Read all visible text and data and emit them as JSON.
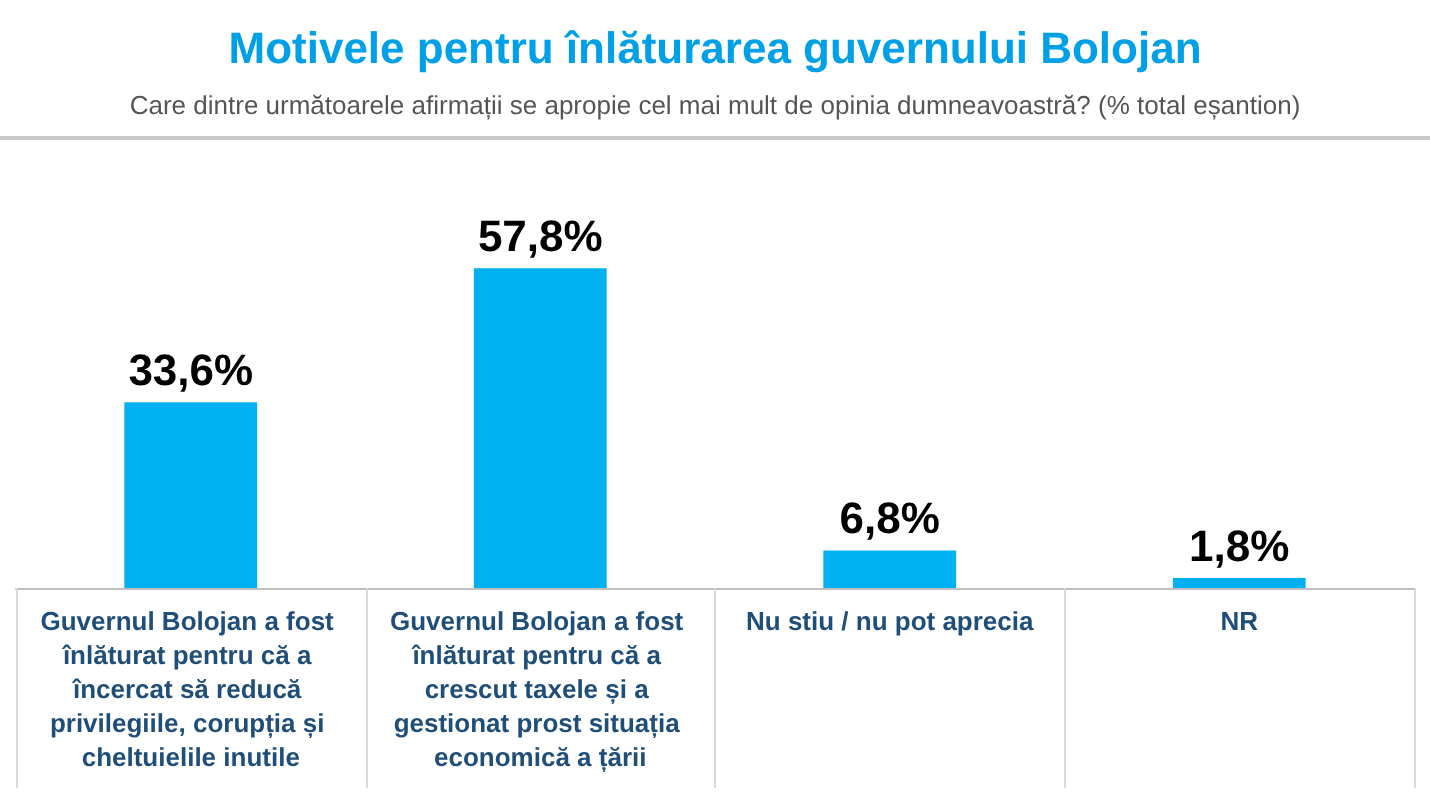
{
  "chart_data": {
    "type": "bar",
    "title": "Motivele pentru înlăturarea guvernului Bolojan",
    "subtitle": "Care dintre următoarele afirmații se apropie cel mai mult de opinia dumneavoastră? (% total eșantion)",
    "categories": [
      "Guvernul Bolojan a fost înlăturat pentru că a încercat să reducă privilegiile, corupția și cheltuielile inutile",
      "Guvernul Bolojan a fost înlăturat pentru că a crescut taxele și a gestionat prost situația economică a țării",
      "Nu stiu / nu pot aprecia",
      "NR"
    ],
    "values": [
      33.6,
      57.8,
      6.8,
      1.8
    ],
    "value_labels": [
      "33,6%",
      "57,8%",
      "6,8%",
      "1,8%"
    ],
    "color": "#00b0f0"
  }
}
